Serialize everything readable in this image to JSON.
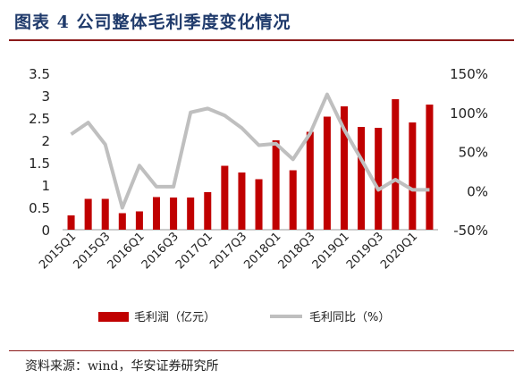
{
  "header": {
    "title": "图表 4 公司整体毛利季度变化情况"
  },
  "footer": {
    "source": "资料来源：wind，华安证券研究所"
  },
  "chart_data": {
    "type": "bar+line",
    "title": "图表 4 公司整体毛利季度变化情况",
    "categories": [
      "2015Q1",
      "2015Q2",
      "2015Q3",
      "2015Q4",
      "2016Q1",
      "2016Q2",
      "2016Q3",
      "2016Q4",
      "2017Q1",
      "2017Q2",
      "2017Q3",
      "2017Q4",
      "2018Q1",
      "2018Q2",
      "2018Q3",
      "2018Q4",
      "2019Q1",
      "2019Q2",
      "2019Q3",
      "2019Q4",
      "2020Q1",
      "2020Q2"
    ],
    "x_tick_labels": [
      "2015Q1",
      "2015Q3",
      "2016Q1",
      "2016Q3",
      "2017Q1",
      "2017Q3",
      "2018Q1",
      "2018Q3",
      "2019Q1",
      "2019Q3",
      "2020Q1"
    ],
    "series": [
      {
        "name": "毛利润（亿元）",
        "type": "bar",
        "axis": "left",
        "color": "#c00000",
        "values": [
          0.32,
          0.69,
          0.69,
          0.37,
          0.41,
          0.73,
          0.72,
          0.72,
          0.84,
          1.43,
          1.28,
          1.13,
          2.0,
          1.33,
          2.19,
          2.53,
          2.76,
          2.3,
          2.28,
          2.92,
          2.4,
          2.8
        ]
      },
      {
        "name": "毛利同比（%）",
        "type": "line",
        "axis": "right",
        "color": "#bfbfbf",
        "values": [
          72,
          87,
          59,
          -22,
          32,
          5,
          5,
          100,
          105,
          96,
          80,
          58,
          60,
          40,
          73,
          123,
          78,
          40,
          1,
          14,
          1,
          1
        ]
      }
    ],
    "y_left": {
      "min": 0,
      "max": 3.5,
      "ticks": [
        "0",
        "0.5",
        "1",
        "1.5",
        "2",
        "2.5",
        "3",
        "3.5"
      ],
      "tick_values": [
        0,
        0.5,
        1,
        1.5,
        2,
        2.5,
        3,
        3.5
      ]
    },
    "y_right": {
      "min": -50,
      "max": 150,
      "ticks": [
        "-50%",
        "0%",
        "50%",
        "100%",
        "150%"
      ],
      "tick_values": [
        -50,
        0,
        50,
        100,
        150
      ]
    },
    "legend": {
      "placement": "bottom",
      "entries": [
        "毛利润（亿元）",
        "毛利同比（%）"
      ]
    },
    "grid": false
  }
}
